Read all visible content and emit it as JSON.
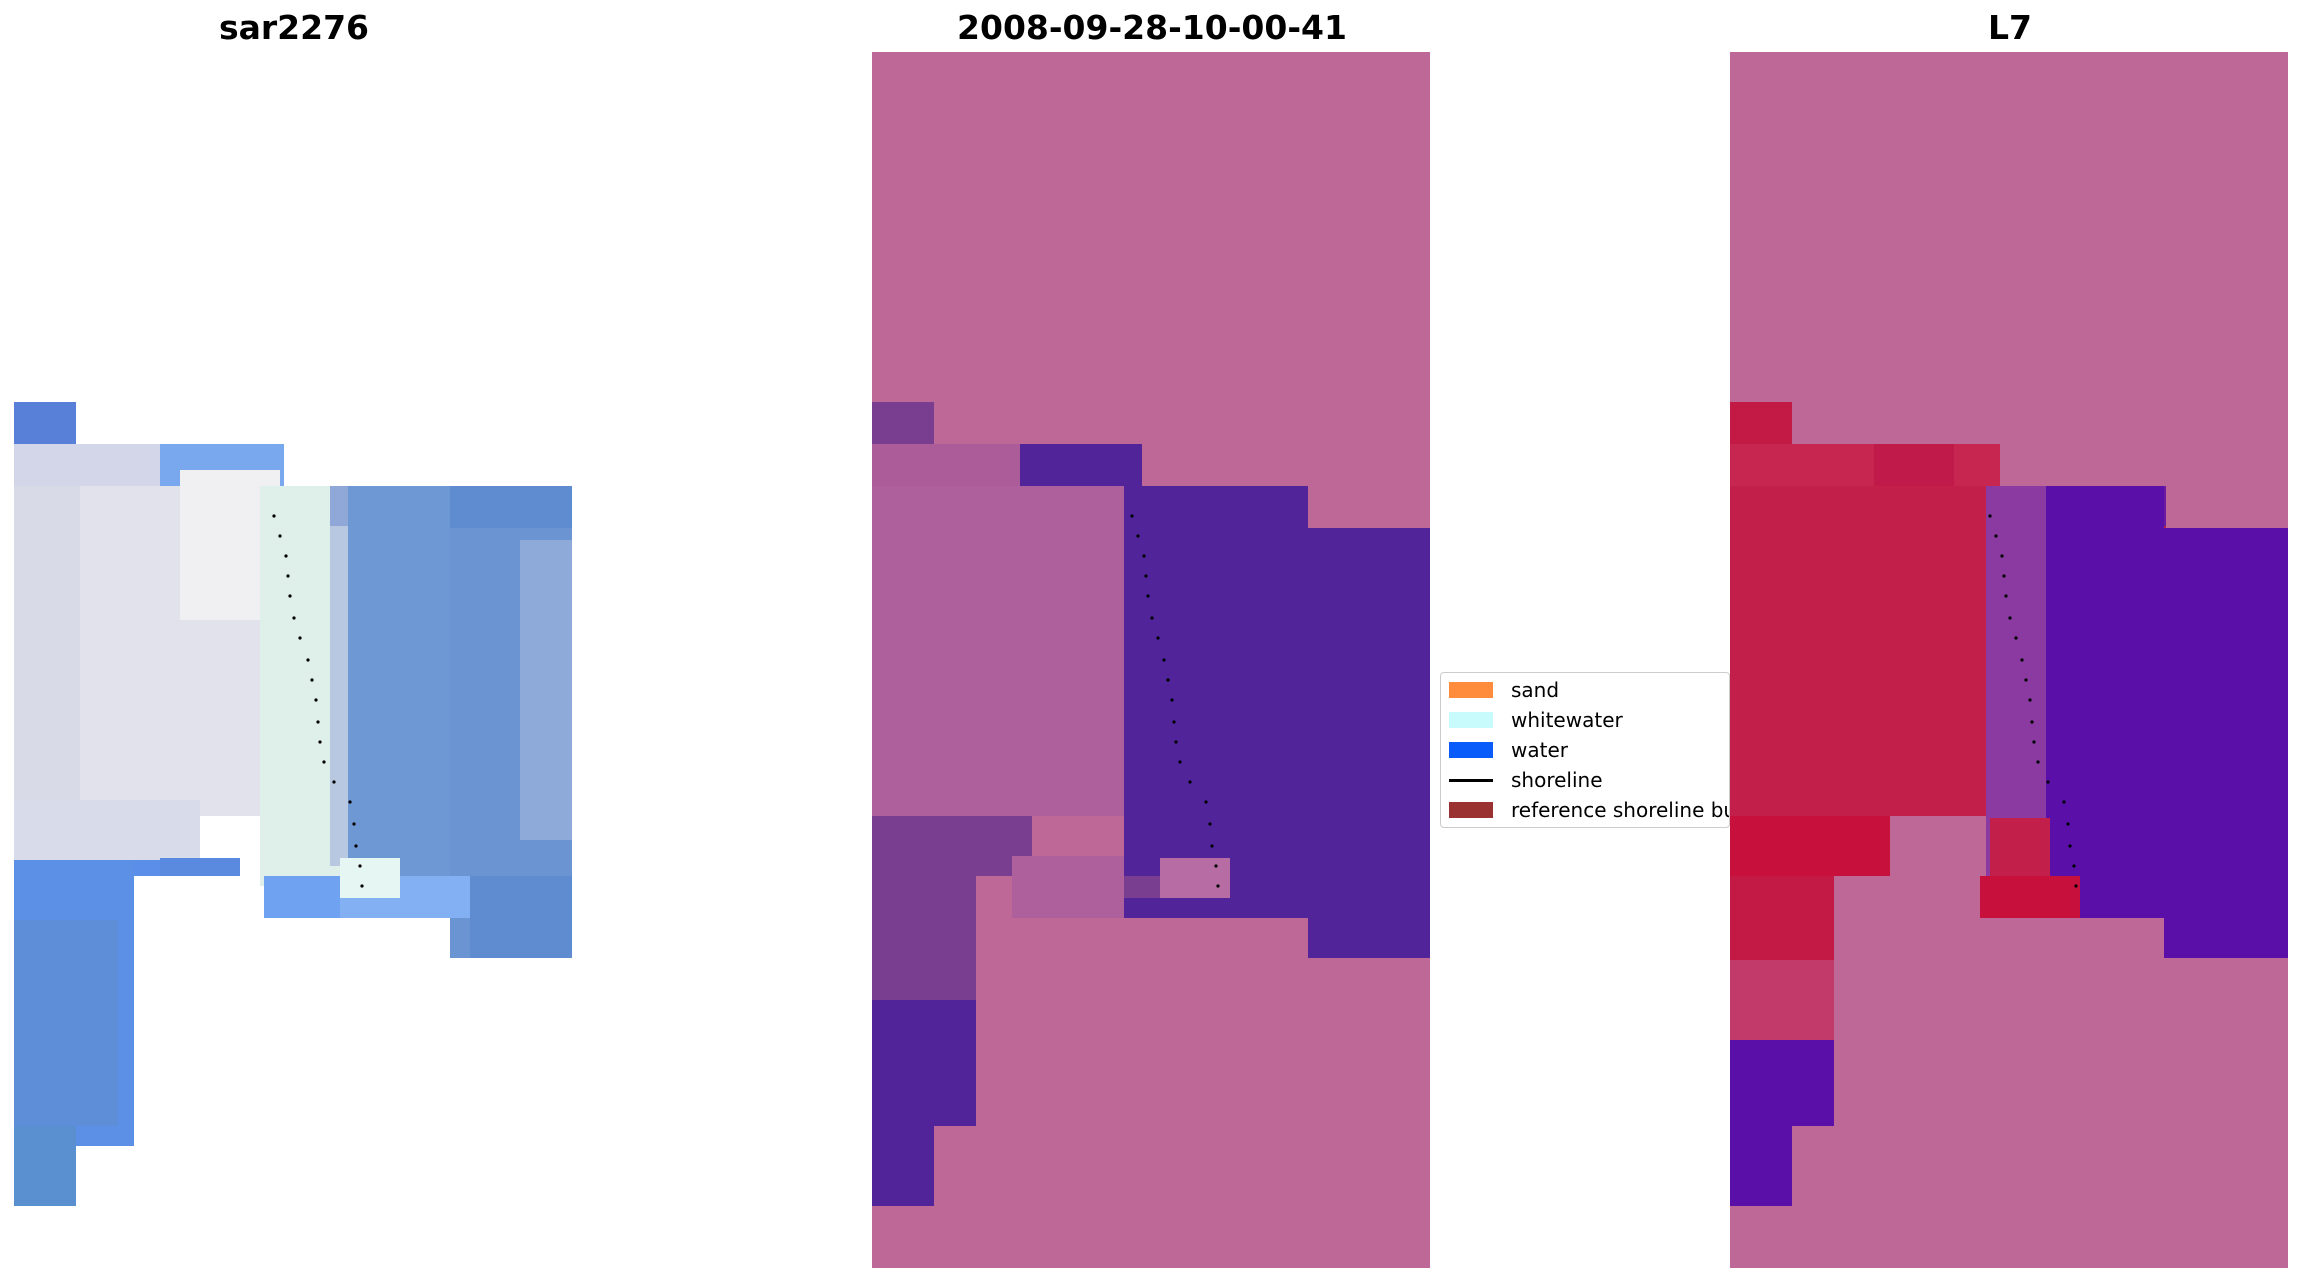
{
  "panels": [
    {
      "title": "sar2276"
    },
    {
      "title": "2008-09-28-10-00-41"
    },
    {
      "title": "L7"
    }
  ],
  "legend": {
    "items": [
      {
        "label": "sand",
        "color": "#ff8c3c",
        "kind": "patch"
      },
      {
        "label": "whitewater",
        "color": "#c8fcfc",
        "kind": "patch"
      },
      {
        "label": "water",
        "color": "#0a5cfa",
        "kind": "patch"
      },
      {
        "label": "shoreline",
        "color": "#000000",
        "kind": "line"
      },
      {
        "label": "reference shoreline buffer",
        "color": "#9b3232",
        "kind": "patch"
      }
    ]
  },
  "colors": {
    "nodata_overlay": "#bd6896",
    "classified_water": "#522499",
    "classified_land": "#b0649a",
    "mndwi_land": "#c2204a",
    "mndwi_water": "#5a10a8"
  }
}
